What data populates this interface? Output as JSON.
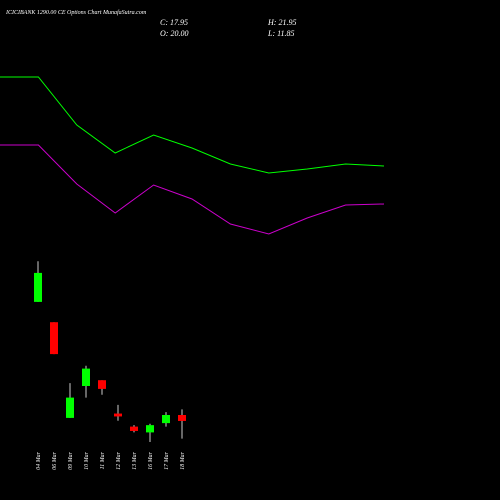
{
  "chart_data": [
    {
      "type": "candlestick",
      "title": "ICICIBANK 1290.00 CE Options Chart MunafaSutra.com",
      "annotations": [
        "C: 17.95",
        "H: 21.95",
        "O: 20.00",
        "L: 11.85"
      ],
      "categories": [
        "04 Mar",
        "06 Mar",
        "09 Mar",
        "10 Mar",
        "11 Mar",
        "12 Mar",
        "13 Mar",
        "16 Mar",
        "17 Mar",
        "18 Mar"
      ],
      "open": [
        59,
        52,
        19,
        30,
        32,
        20.5,
        16,
        14,
        17.2,
        20.0
      ],
      "high": [
        73,
        52,
        31,
        37,
        32,
        23.5,
        16.5,
        17,
        21,
        21.95
      ],
      "low": [
        59,
        41,
        19,
        26,
        27,
        18,
        14,
        10.7,
        16,
        11.85
      ],
      "close": [
        69,
        41,
        26,
        36,
        29,
        19.5,
        14.5,
        16.5,
        20,
        17.95
      ],
      "up_color": "#00ff00",
      "down_color": "#ff0000",
      "ylim": [
        0,
        80
      ]
    },
    {
      "type": "line",
      "x": [
        0,
        1,
        2,
        3,
        4,
        5,
        6,
        7,
        8,
        9,
        10
      ],
      "xlim": [
        0,
        10
      ],
      "ylim": [
        0,
        75
      ],
      "series": [
        {
          "color": "#00ff00",
          "values": [
            51.9,
            51.9,
            37.5,
            29.1,
            34.5,
            30.6,
            25.8,
            23.1,
            24.3,
            25.8,
            25.2
          ]
        },
        {
          "color": "#cc00cc",
          "values": [
            31.5,
            31.5,
            19.8,
            11.1,
            19.5,
            15.3,
            7.8,
            4.8,
            9.6,
            13.5,
            13.8
          ]
        }
      ]
    }
  ]
}
